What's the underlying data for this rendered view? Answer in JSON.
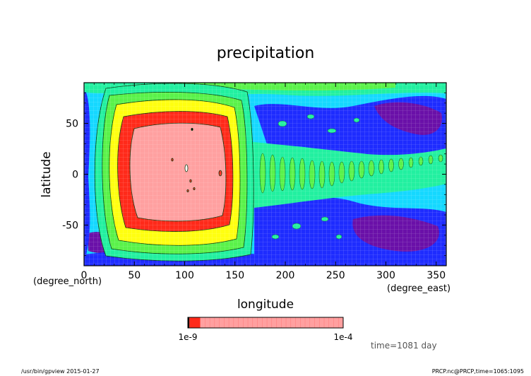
{
  "chart_data": {
    "type": "heatmap",
    "title": "precipitation",
    "xlabel": "longitude",
    "ylabel": "latitude",
    "x_unit": "(degree_east)",
    "y_unit": "(degree_north)",
    "xlim": [
      0,
      360
    ],
    "ylim": [
      -90,
      90
    ],
    "x_ticks": [
      0,
      50,
      100,
      150,
      200,
      250,
      300,
      350
    ],
    "y_ticks": [
      -50,
      0,
      50
    ],
    "grid": true,
    "time_label": "time=1081 day",
    "colorbar": {
      "left_label": "1e-9",
      "right_label": "1e-4",
      "colors": [
        "#000000",
        "#ff2a1a",
        "#ffa0a0"
      ],
      "segments": [
        0.01,
        0.07,
        0.92
      ]
    },
    "palette": {
      "level1": "#6a10a8",
      "level2": "#1e2cff",
      "level3": "#15d8ff",
      "level4": "#22f0a0",
      "level5": "#5af24a",
      "level6": "#ffff10",
      "level7": "#ff2a1a",
      "level8": "#ffa0a0"
    }
  },
  "footer": {
    "left": "/usr/bin/gpview  2015-01-27",
    "right": "PRCP.nc@PRCP,time=1065:1095"
  }
}
